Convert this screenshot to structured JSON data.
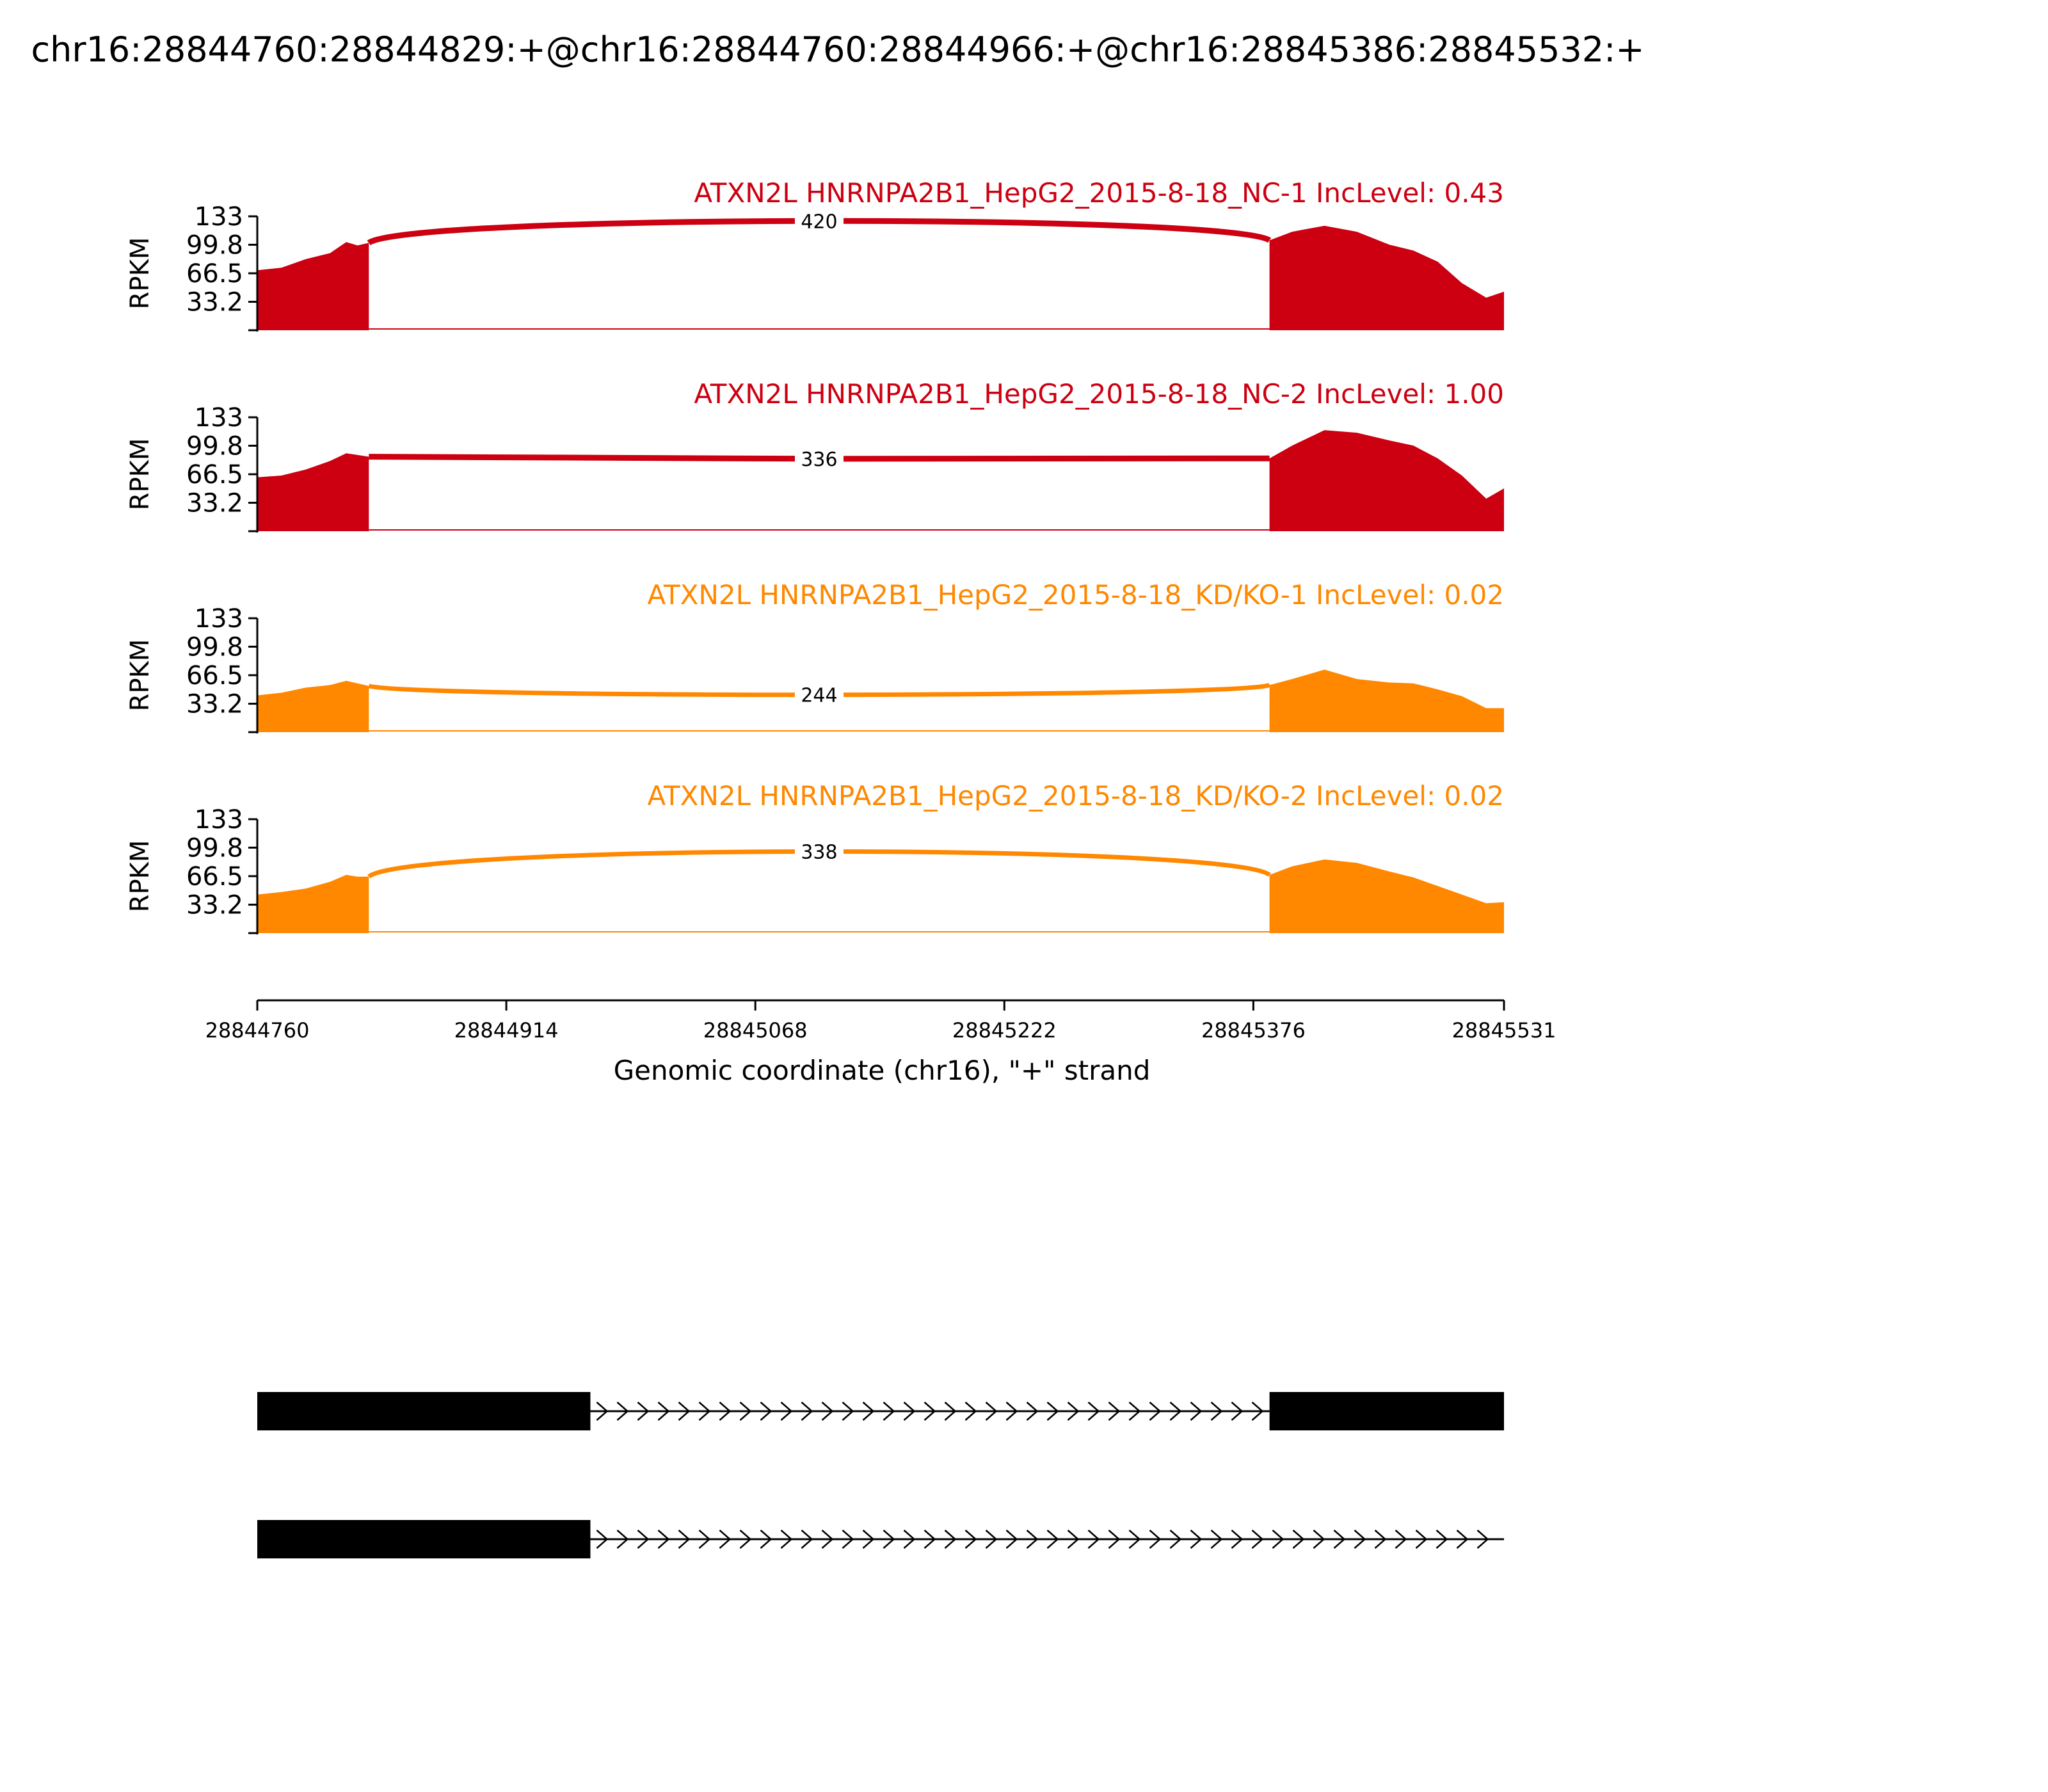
{
  "chart_data": {
    "type": "area",
    "title": "chr16:28844760:28844829:+@chr16:28844760:28844966:+@chr16:28845386:28845532:+",
    "ylabel": "RPKM",
    "xlabel": "Genomic coordinate (chr16), \"+\" strand",
    "ylim": [
      0,
      133
    ],
    "yticks": [
      "133",
      "99.8",
      "66.5",
      "33.2"
    ],
    "xlim": [
      28844760,
      28845531
    ],
    "xticks": [
      28844760,
      28844914,
      28845068,
      28845222,
      28845376,
      28845531
    ],
    "exon_regions": [
      [
        28844760,
        28844829
      ],
      [
        28845386,
        28845531
      ]
    ],
    "tracks": [
      {
        "title": "ATXN2L HNRNPA2B1_HepG2_2015-8-18_NC-1 IncLevel: 0.43",
        "color": "#cc0011",
        "junction_count": "420",
        "left_exon": [
          [
            28844760,
            70
          ],
          [
            28844775,
            73
          ],
          [
            28844790,
            83
          ],
          [
            28844805,
            90
          ],
          [
            28844815,
            103
          ],
          [
            28844822,
            99
          ],
          [
            28844829,
            102
          ]
        ],
        "right_exon": [
          [
            28845386,
            105
          ],
          [
            28845400,
            115
          ],
          [
            28845420,
            122
          ],
          [
            28845440,
            115
          ],
          [
            28845460,
            100
          ],
          [
            28845475,
            93
          ],
          [
            28845490,
            80
          ],
          [
            28845505,
            55
          ],
          [
            28845520,
            38
          ],
          [
            28845531,
            45
          ]
        ]
      },
      {
        "title": "ATXN2L HNRNPA2B1_HepG2_2015-8-18_NC-2 IncLevel: 1.00",
        "color": "#cc0011",
        "junction_count": "336",
        "left_exon": [
          [
            28844760,
            63
          ],
          [
            28844775,
            65
          ],
          [
            28844790,
            72
          ],
          [
            28844805,
            82
          ],
          [
            28844815,
            91
          ],
          [
            28844822,
            89
          ],
          [
            28844829,
            87
          ]
        ],
        "right_exon": [
          [
            28845386,
            85
          ],
          [
            28845400,
            100
          ],
          [
            28845420,
            118
          ],
          [
            28845440,
            115
          ],
          [
            28845460,
            106
          ],
          [
            28845475,
            100
          ],
          [
            28845490,
            85
          ],
          [
            28845505,
            65
          ],
          [
            28845520,
            38
          ],
          [
            28845531,
            50
          ]
        ]
      },
      {
        "title": "ATXN2L HNRNPA2B1_HepG2_2015-8-18_KD/KO-1 IncLevel: 0.02",
        "color": "#ff8800",
        "junction_count": "244",
        "left_exon": [
          [
            28844760,
            43
          ],
          [
            28844775,
            46
          ],
          [
            28844790,
            52
          ],
          [
            28844805,
            55
          ],
          [
            28844815,
            60
          ],
          [
            28844822,
            57
          ],
          [
            28844829,
            54
          ]
        ],
        "right_exon": [
          [
            28845386,
            55
          ],
          [
            28845400,
            62
          ],
          [
            28845420,
            73
          ],
          [
            28845440,
            62
          ],
          [
            28845460,
            58
          ],
          [
            28845475,
            57
          ],
          [
            28845490,
            50
          ],
          [
            28845505,
            42
          ],
          [
            28845520,
            28
          ],
          [
            28845531,
            28
          ]
        ]
      },
      {
        "title": "ATXN2L HNRNPA2B1_HepG2_2015-8-18_KD/KO-2 IncLevel: 0.02",
        "color": "#ff8800",
        "junction_count": "338",
        "left_exon": [
          [
            28844760,
            45
          ],
          [
            28844775,
            48
          ],
          [
            28844790,
            52
          ],
          [
            28844805,
            60
          ],
          [
            28844815,
            68
          ],
          [
            28844822,
            66
          ],
          [
            28844829,
            66
          ]
        ],
        "right_exon": [
          [
            28845386,
            68
          ],
          [
            28845400,
            78
          ],
          [
            28845420,
            86
          ],
          [
            28845440,
            82
          ],
          [
            28845460,
            72
          ],
          [
            28845475,
            65
          ],
          [
            28845490,
            55
          ],
          [
            28845505,
            45
          ],
          [
            28845520,
            35
          ],
          [
            28845531,
            36
          ]
        ]
      }
    ],
    "isoforms": [
      {
        "exons": [
          [
            28844760,
            28844966
          ],
          [
            28845386,
            28845531
          ]
        ],
        "intron": [
          28844966,
          28845386
        ]
      },
      {
        "exons": [
          [
            28844760,
            28844966
          ]
        ],
        "intron": [
          28844966,
          28845531
        ]
      }
    ]
  }
}
